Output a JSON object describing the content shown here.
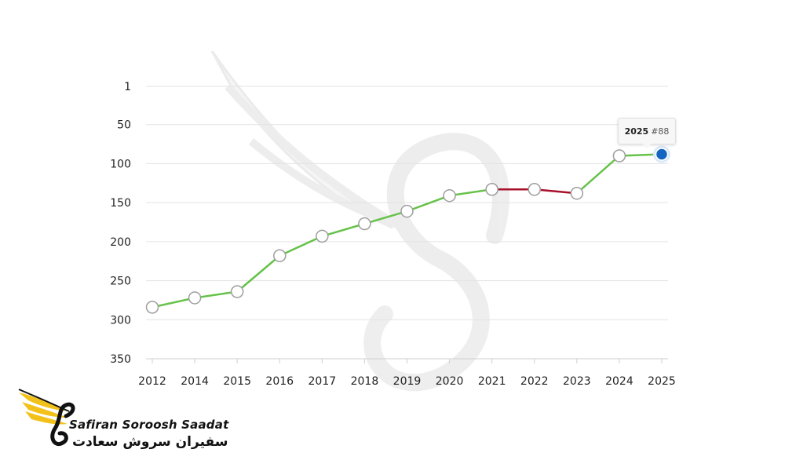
{
  "chart_data": {
    "type": "line",
    "title": "",
    "xlabel": "",
    "ylabel": "",
    "y_inverted": true,
    "ylim": [
      1,
      350
    ],
    "y_ticks": [
      "1",
      "50",
      "100",
      "150",
      "200",
      "250",
      "300",
      "350"
    ],
    "y_tick_values": [
      1,
      50,
      100,
      150,
      200,
      250,
      300,
      350
    ],
    "categories": [
      "2012",
      "2014",
      "2015",
      "2016",
      "2017",
      "2018",
      "2019",
      "2020",
      "2021",
      "2022",
      "2023",
      "2024",
      "2025"
    ],
    "values": [
      284,
      272,
      264,
      218,
      193,
      177,
      161,
      141,
      133,
      133,
      138,
      90,
      88
    ],
    "segment_colors": [
      "#66c24a",
      "#66c24a",
      "#66c24a",
      "#66c24a",
      "#66c24a",
      "#66c24a",
      "#66c24a",
      "#66c24a",
      "#a8102a",
      "#a8102a",
      "#66c24a",
      "#66c24a"
    ],
    "grid": true,
    "highlight": {
      "year": "2025",
      "rank_label": "#88",
      "color": "#1565c0"
    }
  },
  "colors": {
    "line_up": "#66c24a",
    "line_down": "#a8102a",
    "marker_fill": "#ffffff",
    "marker_stroke": "#9e9e9e",
    "highlight": "#1565c0"
  },
  "tooltip": {
    "year": "2025",
    "rank": "#88"
  },
  "logo": {
    "name_en": "Safiran Soroosh Saadat",
    "name_fa": "سفیران سروش سعادت",
    "icon": "phoenix-logo-icon",
    "accent": "#f2c21b"
  }
}
